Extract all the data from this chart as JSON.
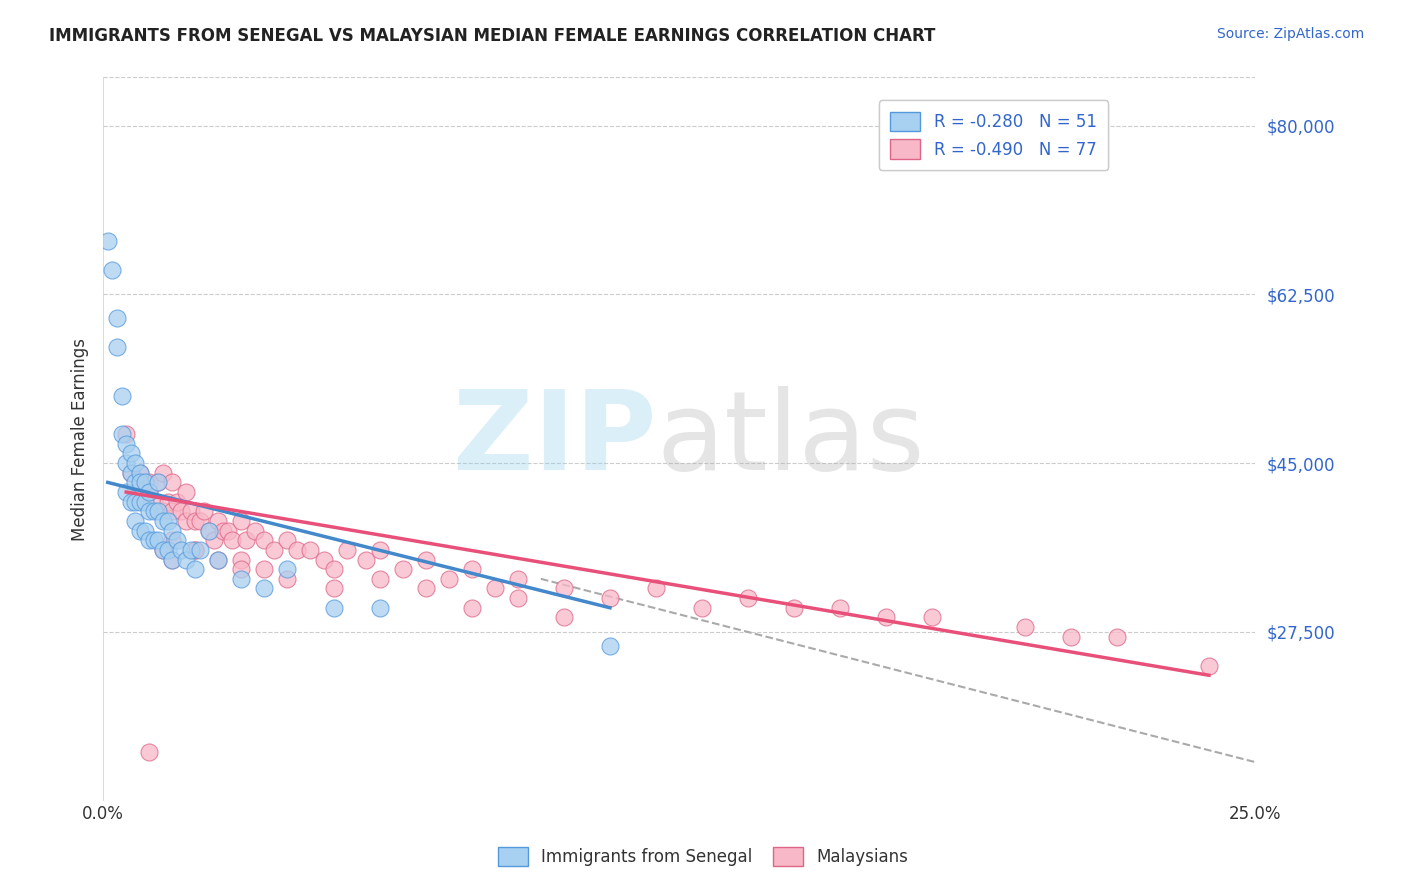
{
  "title": "IMMIGRANTS FROM SENEGAL VS MALAYSIAN MEDIAN FEMALE EARNINGS CORRELATION CHART",
  "source": "Source: ZipAtlas.com",
  "ylabel": "Median Female Earnings",
  "xlim": [
    0.0,
    0.25
  ],
  "ylim": [
    10000,
    85000
  ],
  "ytick_positions": [
    27500,
    45000,
    62500,
    80000
  ],
  "yticklabels": [
    "$27,500",
    "$45,000",
    "$62,500",
    "$80,000"
  ],
  "xtick_left_label": "0.0%",
  "xtick_right_label": "25.0%",
  "legend1_label": "R = -0.280   N = 51",
  "legend2_label": "R = -0.490   N = 77",
  "legend_bottom_label1": "Immigrants from Senegal",
  "legend_bottom_label2": "Malaysians",
  "blue_color": "#A8D0F0",
  "pink_color": "#F8B8C8",
  "blue_line_color": "#4488CC",
  "pink_line_color": "#E8507A",
  "blue_edge_color": "#5599DD",
  "pink_edge_color": "#DD6688",
  "r_value_color": "#3366CC",
  "grid_color": "#CCCCCC",
  "background_color": "#FFFFFF",
  "title_color": "#222222",
  "blue_scatter_x": [
    0.001,
    0.002,
    0.003,
    0.003,
    0.004,
    0.004,
    0.005,
    0.005,
    0.005,
    0.006,
    0.006,
    0.006,
    0.007,
    0.007,
    0.007,
    0.007,
    0.008,
    0.008,
    0.008,
    0.008,
    0.009,
    0.009,
    0.009,
    0.01,
    0.01,
    0.01,
    0.011,
    0.011,
    0.012,
    0.012,
    0.012,
    0.013,
    0.013,
    0.014,
    0.014,
    0.015,
    0.015,
    0.016,
    0.017,
    0.018,
    0.019,
    0.02,
    0.021,
    0.023,
    0.025,
    0.03,
    0.035,
    0.04,
    0.05,
    0.06,
    0.11
  ],
  "blue_scatter_y": [
    68000,
    65000,
    60000,
    57000,
    52000,
    48000,
    47000,
    45000,
    42000,
    46000,
    44000,
    41000,
    45000,
    43000,
    41000,
    39000,
    44000,
    43000,
    41000,
    38000,
    43000,
    41000,
    38000,
    42000,
    40000,
    37000,
    40000,
    37000,
    43000,
    40000,
    37000,
    39000,
    36000,
    39000,
    36000,
    38000,
    35000,
    37000,
    36000,
    35000,
    36000,
    34000,
    36000,
    38000,
    35000,
    33000,
    32000,
    34000,
    30000,
    30000,
    26000
  ],
  "pink_scatter_x": [
    0.005,
    0.006,
    0.007,
    0.008,
    0.009,
    0.01,
    0.01,
    0.011,
    0.012,
    0.013,
    0.013,
    0.014,
    0.015,
    0.015,
    0.016,
    0.017,
    0.018,
    0.018,
    0.019,
    0.02,
    0.021,
    0.022,
    0.023,
    0.024,
    0.025,
    0.026,
    0.027,
    0.028,
    0.03,
    0.031,
    0.033,
    0.035,
    0.037,
    0.04,
    0.042,
    0.045,
    0.048,
    0.05,
    0.053,
    0.057,
    0.06,
    0.065,
    0.07,
    0.075,
    0.08,
    0.085,
    0.09,
    0.1,
    0.11,
    0.12,
    0.13,
    0.14,
    0.15,
    0.16,
    0.17,
    0.18,
    0.2,
    0.21,
    0.22,
    0.013,
    0.015,
    0.02,
    0.025,
    0.03,
    0.035,
    0.04,
    0.05,
    0.06,
    0.07,
    0.08,
    0.09,
    0.1,
    0.015,
    0.02,
    0.03,
    0.24,
    0.01
  ],
  "pink_scatter_y": [
    48000,
    44000,
    42000,
    44000,
    43000,
    43000,
    42000,
    41000,
    43000,
    44000,
    40000,
    41000,
    43000,
    40000,
    41000,
    40000,
    42000,
    39000,
    40000,
    39000,
    39000,
    40000,
    38000,
    37000,
    39000,
    38000,
    38000,
    37000,
    39000,
    37000,
    38000,
    37000,
    36000,
    37000,
    36000,
    36000,
    35000,
    34000,
    36000,
    35000,
    36000,
    34000,
    35000,
    33000,
    34000,
    32000,
    33000,
    32000,
    31000,
    32000,
    30000,
    31000,
    30000,
    30000,
    29000,
    29000,
    28000,
    27000,
    27000,
    36000,
    35000,
    36000,
    35000,
    35000,
    34000,
    33000,
    32000,
    33000,
    32000,
    30000,
    31000,
    29000,
    37000,
    36000,
    34000,
    24000,
    15000
  ],
  "blue_regline_x": [
    0.001,
    0.11
  ],
  "blue_regline_y": [
    43000,
    30000
  ],
  "pink_regline_x": [
    0.005,
    0.24
  ],
  "pink_regline_y": [
    42000,
    23000
  ],
  "dashed_line_x": [
    0.095,
    0.25
  ],
  "dashed_line_y": [
    33000,
    14000
  ]
}
